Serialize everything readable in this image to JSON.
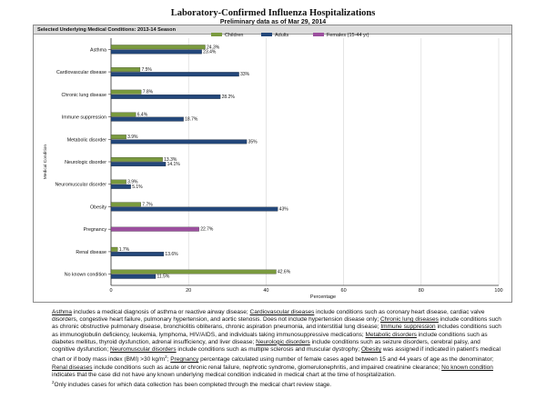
{
  "chart_data": {
    "type": "bar",
    "title": "Laboratory-Confirmed Influenza Hospitalizations",
    "subtitle": "Preliminary data as of Mar 29, 2014",
    "panel_header": "Selected Underlying Medical Conditions: 2013-14 Season",
    "xlabel": "Percentage",
    "ylabel": "Medical Condition",
    "xlim": [
      0,
      100
    ],
    "x_ticks": [
      "0",
      "20",
      "40",
      "60",
      "80",
      "100"
    ],
    "orientation": "horizontal",
    "legend_position": "top",
    "categories": [
      "Asthma",
      "Cardiovascular disease",
      "Chronic lung disease",
      "Immune suppression",
      "Metabolic disorder",
      "Neurologic disorder",
      "Neuromuscular disorder",
      "Obesity",
      "Pregnancy",
      "Renal disease",
      "No known condition"
    ],
    "series": [
      {
        "name": "Children",
        "color": "#7a9a3e",
        "values": [
          24.3,
          7.5,
          7.8,
          6.4,
          3.9,
          13.3,
          3.9,
          7.7,
          null,
          1.7,
          42.6
        ],
        "labels": [
          "24.3%",
          "7.5%",
          "7.8%",
          "6.4%",
          "3.9%",
          "13.3%",
          "3.9%",
          "7.7%",
          "",
          "1.7%",
          "42.6%"
        ]
      },
      {
        "name": "Adults",
        "color": "#23477a",
        "values": [
          23.4,
          33,
          28.2,
          18.7,
          35,
          14.1,
          5.1,
          43,
          null,
          13.6,
          11.5
        ],
        "labels": [
          "23.4%",
          "33%",
          "28.2%",
          "18.7%",
          "35%",
          "14.1%",
          "5.1%",
          "43%",
          "",
          "13.6%",
          "11.5%"
        ]
      },
      {
        "name": "Females (15-44 yr)",
        "color": "#9b4f9e",
        "values": [
          null,
          null,
          null,
          null,
          null,
          null,
          null,
          null,
          22.7,
          null,
          null
        ],
        "labels": [
          "",
          "",
          "",
          "",
          "",
          "",
          "",
          "",
          "22.7%",
          "",
          ""
        ]
      }
    ]
  },
  "footnote": {
    "t_asthma": "Asthma",
    "d_asthma": " includes a medical diagnosis of asthma or reactive airway disease; ",
    "t_cardio": "Cardiovascular diseases",
    "d_cardio": " include conditions such as coronary heart disease, cardiac valve disorders, congestive heart failure, pulmonary hypertension, and aortic stenosis.  Does not include hypertension disease only; ",
    "t_lung": "Chronic lung diseases",
    "d_lung": " include conditions such as chronic obstructive pulmonary disease, bronchiolitis obliterans, chronic aspiration pneumonia, and interstitial lung disease; ",
    "t_immune": "Immune suppression",
    "d_immune": " includes conditions such as immunoglobulin deficiency, leukemia, lymphoma, HIV/AIDS, and individuals taking immunosuppressive medications; ",
    "t_metabolic": "Metabolic disorders",
    "d_metabolic": " include conditions such as diabetes mellitus, thyroid dysfunction, adrenal insufficiency, and liver disease; ",
    "t_neuro": "Neurologic disorders",
    "d_neuro": " include conditions such as seizure disorders, cerebral palsy, and cognitive dysfunction; ",
    "t_neuromusc": "Neuromuscular disorders",
    "d_neuromusc": " include conditions such as multiple sclerosis and muscular dystrophy; ",
    "t_obesity": "Obesity",
    "d_obesity": " was assigned if indicated in patient's medical chart or if body mass index (BMI) >30 kg/m",
    "sup_2": "2",
    "d_sep": "; ",
    "t_pregnancy": "Pregnancy",
    "d_pregnancy": " percentage calculated using number of female cases aged between 15 and 44 years of age as the denominator; ",
    "t_renal": "Renal diseases",
    "d_renal": " include conditions such as acute or chronic renal failure, nephrotic syndrome, glomerulonephritis, and impaired creatinine clearance; ",
    "t_noknown": "No known condition",
    "d_noknown": " indicates that the case did not have any known underlying medical condition indicated in medical chart at the time of hospitalization.",
    "note2_sup": "2",
    "note2": "Only includes cases for which data collection has been completed through the medical chart review stage."
  }
}
